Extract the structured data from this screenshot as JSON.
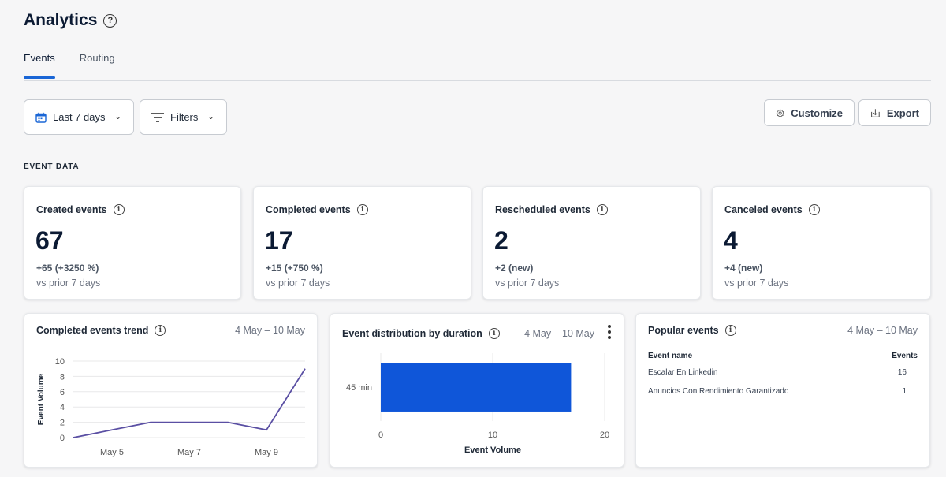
{
  "page": {
    "title": "Analytics"
  },
  "tabs": [
    {
      "label": "Events",
      "active": true
    },
    {
      "label": "Routing",
      "active": false
    }
  ],
  "toolbar": {
    "date_range": "Last 7 days",
    "filters": "Filters",
    "customize": "Customize",
    "export": "Export"
  },
  "section_label": "EVENT DATA",
  "stats": [
    {
      "title": "Created events",
      "value": "67",
      "delta": "+65 (+3250 %)",
      "sub": "vs prior 7 days"
    },
    {
      "title": "Completed events",
      "value": "17",
      "delta": "+15 (+750 %)",
      "sub": "vs prior 7 days"
    },
    {
      "title": "Rescheduled events",
      "value": "2",
      "delta": "+2 (new)",
      "sub": "vs prior 7 days"
    },
    {
      "title": "Canceled events",
      "value": "4",
      "delta": "+4 (new)",
      "sub": "vs prior 7 days"
    }
  ],
  "trend_card": {
    "title": "Completed events trend",
    "date": "4 May – 10 May"
  },
  "dist_card": {
    "title": "Event distribution by duration",
    "date": "4 May – 10 May"
  },
  "popular_card": {
    "title": "Popular events",
    "date": "4 May – 10 May",
    "columns": [
      "Event name",
      "Events"
    ],
    "rows": [
      {
        "name": "Escalar En Linkedin",
        "count": "16"
      },
      {
        "name": "Anuncios Con Rendimiento Garantizado",
        "count": "1"
      }
    ]
  },
  "colors": {
    "accent": "#1a66d6",
    "line": "#5a4fa3",
    "bar": "#0f56d9"
  },
  "chart_data": [
    {
      "type": "line",
      "ylabel": "Event Volume",
      "ylim": [
        0,
        10
      ],
      "yticks": [
        "0",
        "2",
        "4",
        "6",
        "8",
        "10"
      ],
      "x": [
        "May 4",
        "May 5",
        "May 6",
        "May 7",
        "May 8",
        "May 9",
        "May 10"
      ],
      "xtick_labels": [
        "May 5",
        "May 7",
        "May 9"
      ],
      "values": [
        0,
        1,
        2,
        2,
        2,
        1,
        9
      ],
      "grid": true
    },
    {
      "type": "bar",
      "orientation": "horizontal",
      "categories": [
        "45 min"
      ],
      "values": [
        17
      ],
      "xlabel": "Event Volume",
      "xlim": [
        0,
        20
      ],
      "xticks": [
        "0",
        "10",
        "20"
      ],
      "grid": true
    }
  ]
}
